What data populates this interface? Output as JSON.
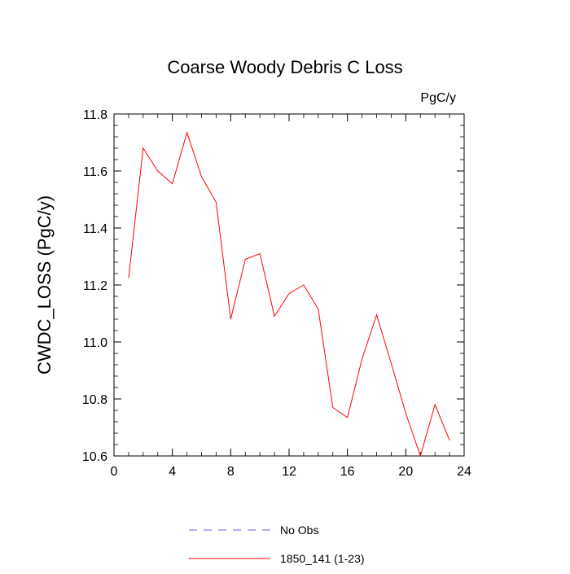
{
  "chart_data": {
    "type": "line",
    "title": "Coarse Woody Debris C Loss",
    "units": "PgC/y",
    "xlabel": "",
    "ylabel": "CWDC_LOSS  (PgC/y)",
    "xlim": [
      0,
      24
    ],
    "ylim": [
      10.6,
      11.8
    ],
    "x_ticks": [
      0,
      4,
      8,
      12,
      16,
      20,
      24
    ],
    "y_ticks": [
      10.6,
      10.8,
      11.0,
      11.2,
      11.4,
      11.6,
      11.8
    ],
    "x_tick_labels": [
      "0",
      "4",
      "8",
      "12",
      "16",
      "20",
      "24"
    ],
    "y_tick_labels": [
      "10.6",
      "10.8",
      "11.0",
      "11.2",
      "11.4",
      "11.6",
      "11.8"
    ],
    "grid": false,
    "legend_position": "bottom",
    "series": [
      {
        "name": "No Obs",
        "color": "#6666dd",
        "dash": "dashed",
        "x": [],
        "values": []
      },
      {
        "name": "1850_141 (1-23)",
        "color": "#ff0000",
        "dash": "solid",
        "x": [
          1,
          2,
          3,
          4,
          5,
          6,
          7,
          8,
          9,
          10,
          11,
          12,
          13,
          14,
          15,
          16,
          17,
          18,
          19,
          20,
          21,
          22,
          23
        ],
        "values": [
          11.225,
          11.68,
          11.6,
          11.555,
          11.735,
          11.58,
          11.49,
          11.08,
          11.29,
          11.31,
          11.09,
          11.17,
          11.2,
          11.115,
          10.77,
          10.735,
          10.94,
          11.095,
          10.925,
          10.75,
          10.6,
          10.78,
          10.655
        ]
      }
    ]
  }
}
